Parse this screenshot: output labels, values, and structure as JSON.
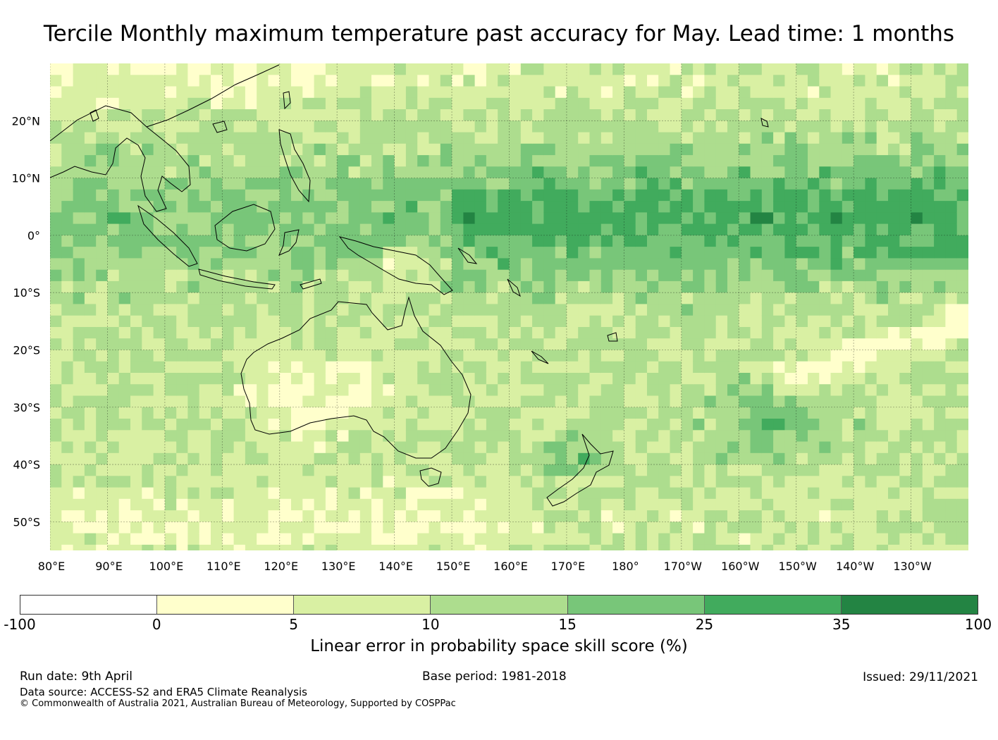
{
  "title": "Tercile Monthly maximum temperature past accuracy for May. Lead time: 1 months",
  "map": {
    "lat_labels": [
      "20°N",
      "10°N",
      "0°",
      "10°S",
      "20°S",
      "30°S",
      "40°S",
      "50°S"
    ],
    "lon_labels": [
      "80°E",
      "90°E",
      "100°E",
      "110°E",
      "120°E",
      "130°E",
      "140°E",
      "150°E",
      "160°E",
      "170°E",
      "180°",
      "170°W",
      "160°W",
      "150°W",
      "140°W",
      "130°W"
    ],
    "extent": {
      "lon_min": 80,
      "lon_max": 240,
      "lat_min": -55,
      "lat_max": 30
    },
    "legend_colors": [
      "#ffffff",
      "#ffffcc",
      "#d9f0a3",
      "#addd8e",
      "#78c679",
      "#41ab5d",
      "#238443"
    ]
  },
  "colorbar": {
    "ticks": [
      "-100",
      "0",
      "5",
      "10",
      "15",
      "25",
      "35",
      "100"
    ],
    "label": "Linear error in probability space skill score (%)"
  },
  "footer": {
    "run_date": "Run date: 9th April",
    "base_period": "Base period: 1981-2018",
    "issued": "Issued: 29/11/2021",
    "data_source": "Data source: ACCESS-S2 and ERA5 Climate Reanalysis",
    "copyright": "© Commonwealth of Australia 2021, Australian Bureau of Meteorology, Supported by COSPPac"
  }
}
